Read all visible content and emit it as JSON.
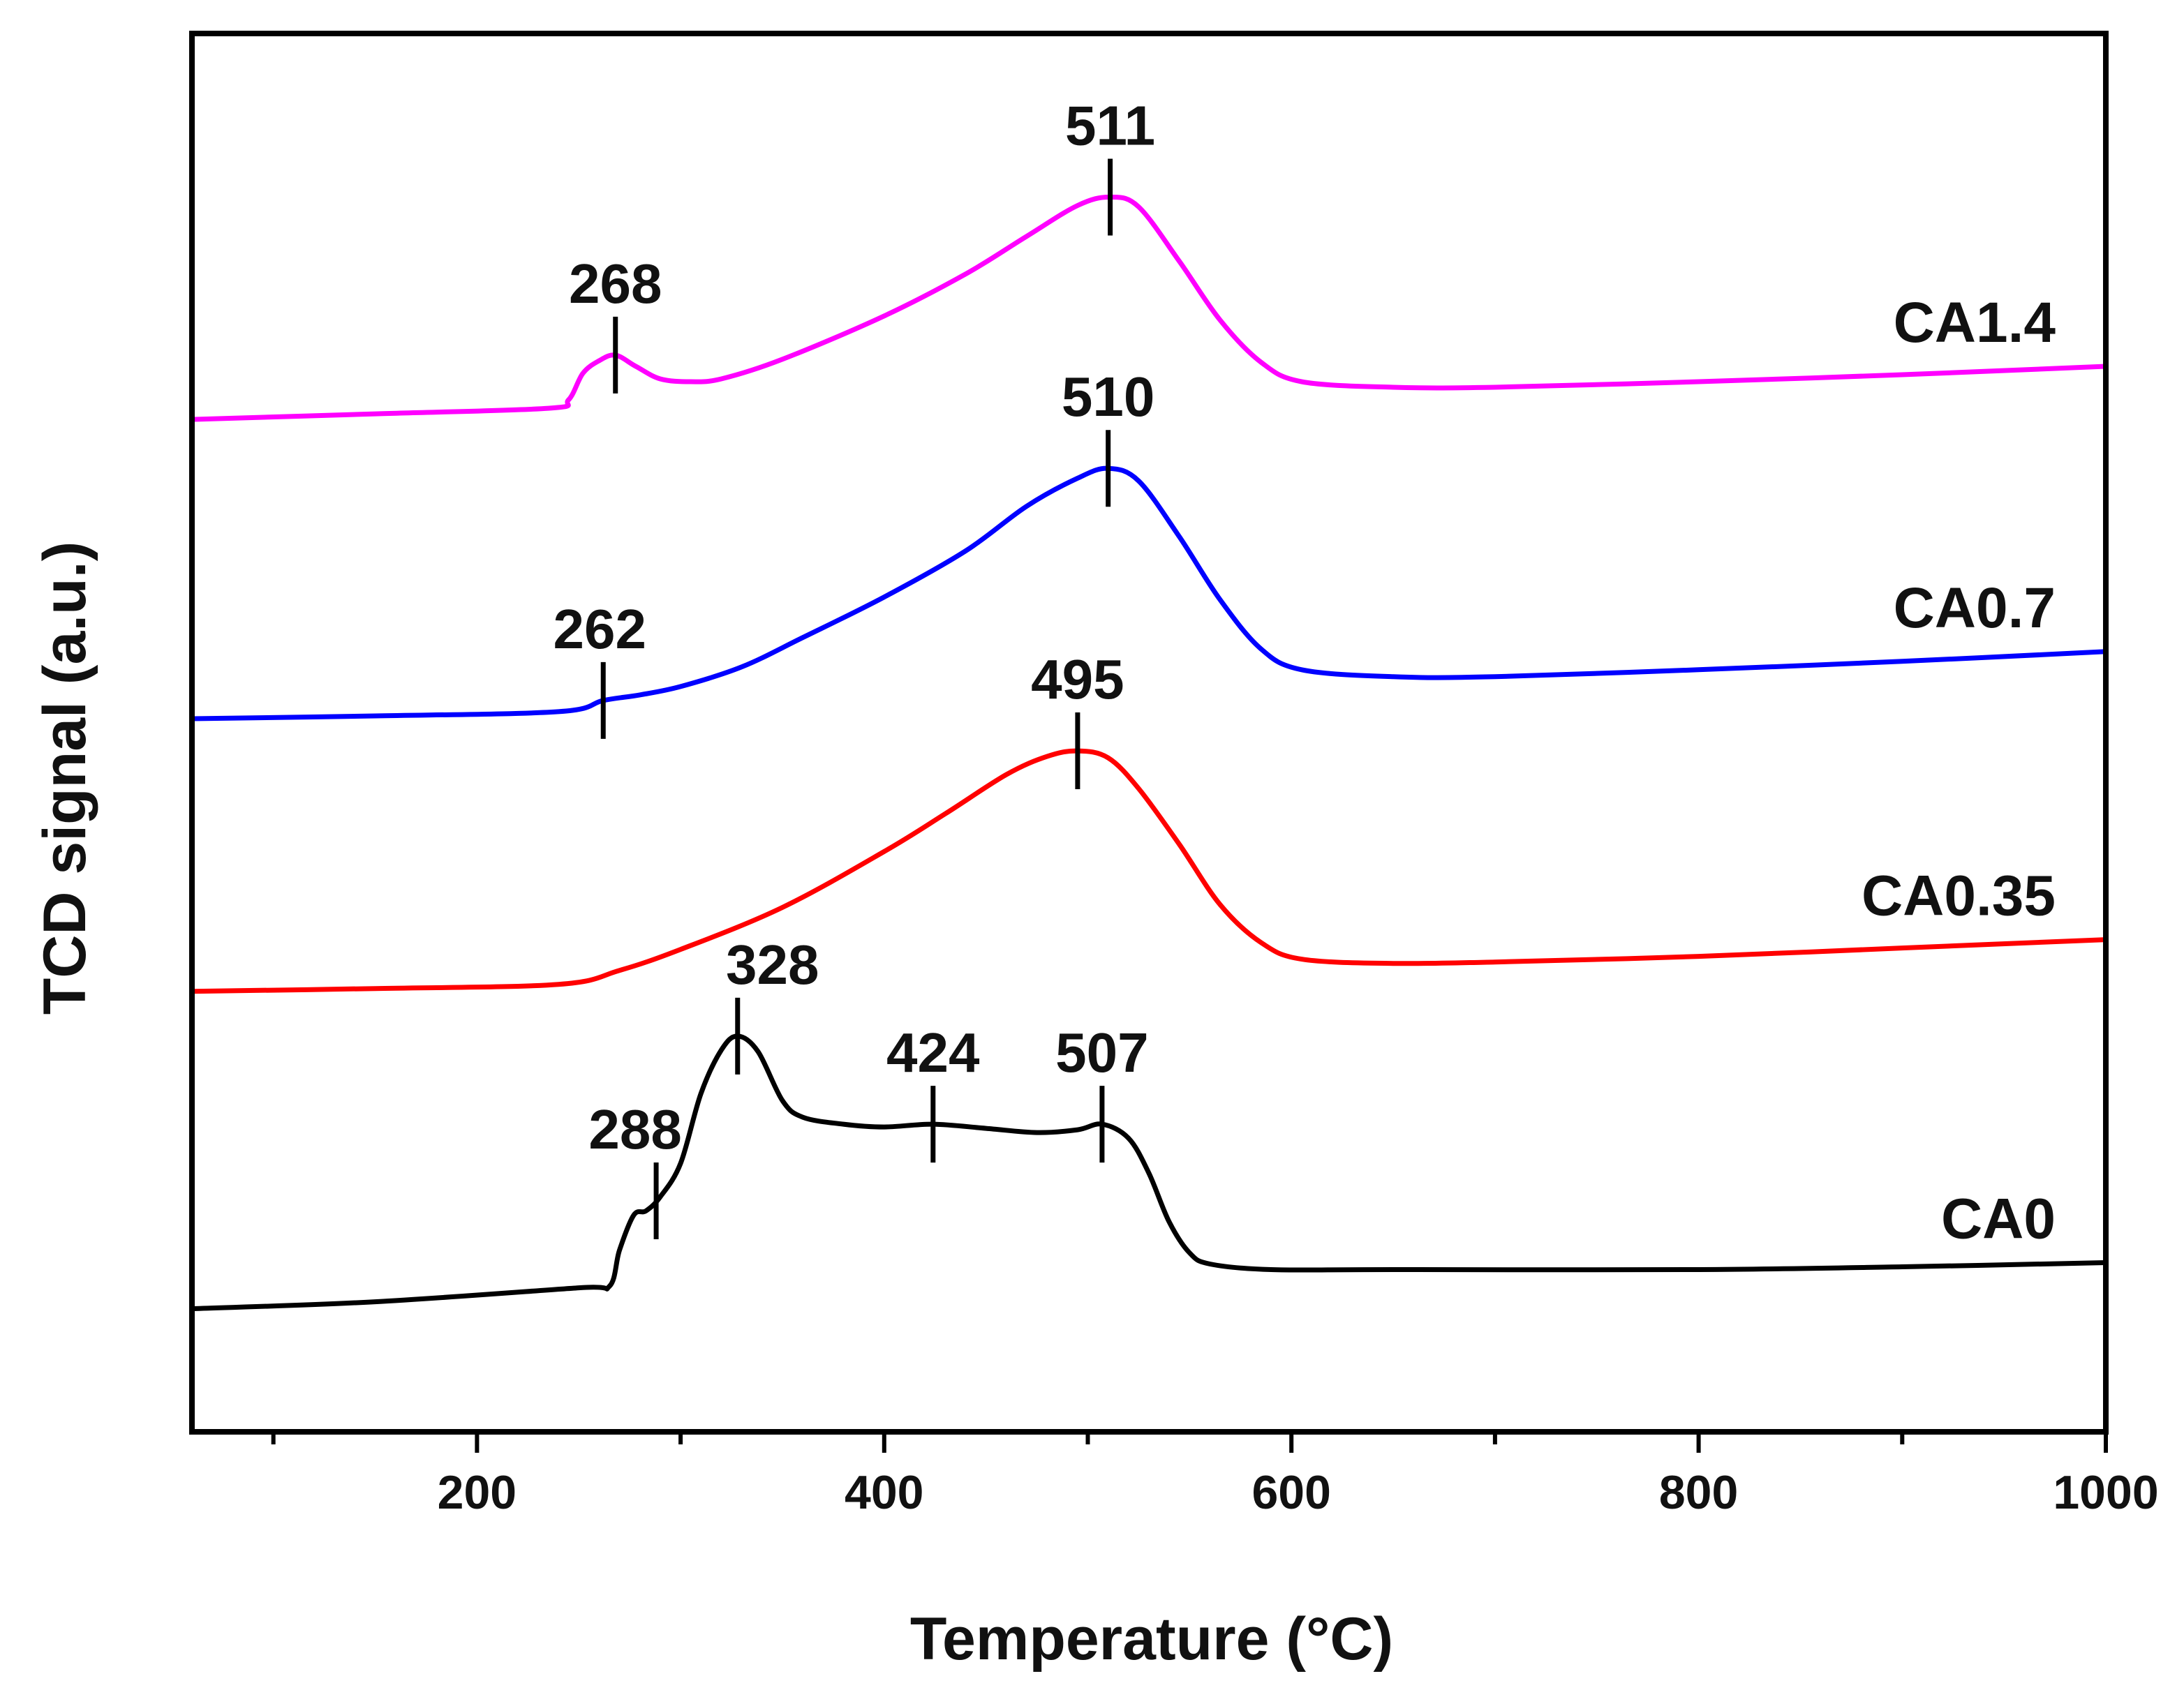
{
  "chart_data": {
    "type": "line",
    "title": "",
    "xlabel": "Temperature (°C)",
    "ylabel": "TCD signal (a.u.)",
    "xlim": [
      60,
      1000
    ],
    "ylim": [
      0,
      10
    ],
    "x_ticks_major": [
      200,
      400,
      600,
      800,
      1000
    ],
    "x_tick_labels": [
      "200",
      "400",
      "600",
      "800",
      "1000"
    ],
    "x_ticks_minor": [
      100,
      300,
      500,
      700,
      900
    ],
    "y_ticks": false,
    "grid": false,
    "legend": "none; series labelled directly at right end of each curve",
    "series": [
      {
        "name": "CA0",
        "color": "#000000",
        "points": [
          [
            60,
            0.88
          ],
          [
            150,
            0.93
          ],
          [
            250,
            1.03
          ],
          [
            265,
            1.04
          ],
          [
            270,
            1.3
          ],
          [
            277,
            1.55
          ],
          [
            283,
            1.58
          ],
          [
            290,
            1.68
          ],
          [
            300,
            1.92
          ],
          [
            310,
            2.42
          ],
          [
            320,
            2.73
          ],
          [
            328,
            2.83
          ],
          [
            338,
            2.72
          ],
          [
            350,
            2.37
          ],
          [
            360,
            2.25
          ],
          [
            380,
            2.2
          ],
          [
            400,
            2.18
          ],
          [
            424,
            2.2
          ],
          [
            450,
            2.17
          ],
          [
            475,
            2.14
          ],
          [
            495,
            2.16
          ],
          [
            507,
            2.2
          ],
          [
            520,
            2.1
          ],
          [
            530,
            1.85
          ],
          [
            540,
            1.5
          ],
          [
            550,
            1.28
          ],
          [
            560,
            1.2
          ],
          [
            590,
            1.16
          ],
          [
            650,
            1.16
          ],
          [
            800,
            1.16
          ],
          [
            900,
            1.18
          ],
          [
            1000,
            1.21
          ]
        ],
        "peaks": [
          288,
          328,
          424,
          507
        ],
        "peak_labels": [
          "288",
          "328",
          "424",
          "507"
        ]
      },
      {
        "name": "CA0.35",
        "color": "#ff0000",
        "points": [
          [
            60,
            3.15
          ],
          [
            150,
            3.17
          ],
          [
            240,
            3.2
          ],
          [
            270,
            3.3
          ],
          [
            300,
            3.45
          ],
          [
            350,
            3.75
          ],
          [
            400,
            4.15
          ],
          [
            430,
            4.42
          ],
          [
            460,
            4.7
          ],
          [
            480,
            4.83
          ],
          [
            495,
            4.87
          ],
          [
            510,
            4.82
          ],
          [
            525,
            4.6
          ],
          [
            545,
            4.2
          ],
          [
            565,
            3.77
          ],
          [
            585,
            3.5
          ],
          [
            605,
            3.38
          ],
          [
            650,
            3.35
          ],
          [
            700,
            3.36
          ],
          [
            800,
            3.4
          ],
          [
            900,
            3.46
          ],
          [
            1000,
            3.52
          ]
        ],
        "peaks": [
          495
        ],
        "peak_labels": [
          "495"
        ]
      },
      {
        "name": "CA0.7",
        "color": "#0000ff",
        "points": [
          [
            60,
            5.1
          ],
          [
            150,
            5.12
          ],
          [
            240,
            5.15
          ],
          [
            262,
            5.23
          ],
          [
            280,
            5.27
          ],
          [
            300,
            5.33
          ],
          [
            330,
            5.47
          ],
          [
            360,
            5.68
          ],
          [
            400,
            5.97
          ],
          [
            440,
            6.3
          ],
          [
            470,
            6.62
          ],
          [
            495,
            6.82
          ],
          [
            510,
            6.89
          ],
          [
            525,
            6.8
          ],
          [
            545,
            6.4
          ],
          [
            565,
            5.95
          ],
          [
            585,
            5.6
          ],
          [
            605,
            5.45
          ],
          [
            650,
            5.4
          ],
          [
            700,
            5.4
          ],
          [
            800,
            5.45
          ],
          [
            900,
            5.51
          ],
          [
            1000,
            5.58
          ]
        ],
        "peaks": [
          262,
          510
        ],
        "peak_labels": [
          "262",
          "510"
        ]
      },
      {
        "name": "CA1.4",
        "color": "#ff00ff",
        "points": [
          [
            60,
            7.24
          ],
          [
            150,
            7.28
          ],
          [
            235,
            7.32
          ],
          [
            245,
            7.38
          ],
          [
            252,
            7.57
          ],
          [
            260,
            7.66
          ],
          [
            268,
            7.7
          ],
          [
            278,
            7.62
          ],
          [
            290,
            7.53
          ],
          [
            305,
            7.51
          ],
          [
            320,
            7.53
          ],
          [
            350,
            7.67
          ],
          [
            400,
            7.98
          ],
          [
            440,
            8.28
          ],
          [
            470,
            8.55
          ],
          [
            495,
            8.77
          ],
          [
            511,
            8.83
          ],
          [
            525,
            8.76
          ],
          [
            545,
            8.37
          ],
          [
            565,
            7.95
          ],
          [
            585,
            7.65
          ],
          [
            605,
            7.51
          ],
          [
            650,
            7.47
          ],
          [
            700,
            7.47
          ],
          [
            800,
            7.51
          ],
          [
            900,
            7.56
          ],
          [
            1000,
            7.62
          ]
        ],
        "peaks": [
          268,
          511
        ],
        "peak_labels": [
          "268",
          "511"
        ]
      }
    ]
  }
}
